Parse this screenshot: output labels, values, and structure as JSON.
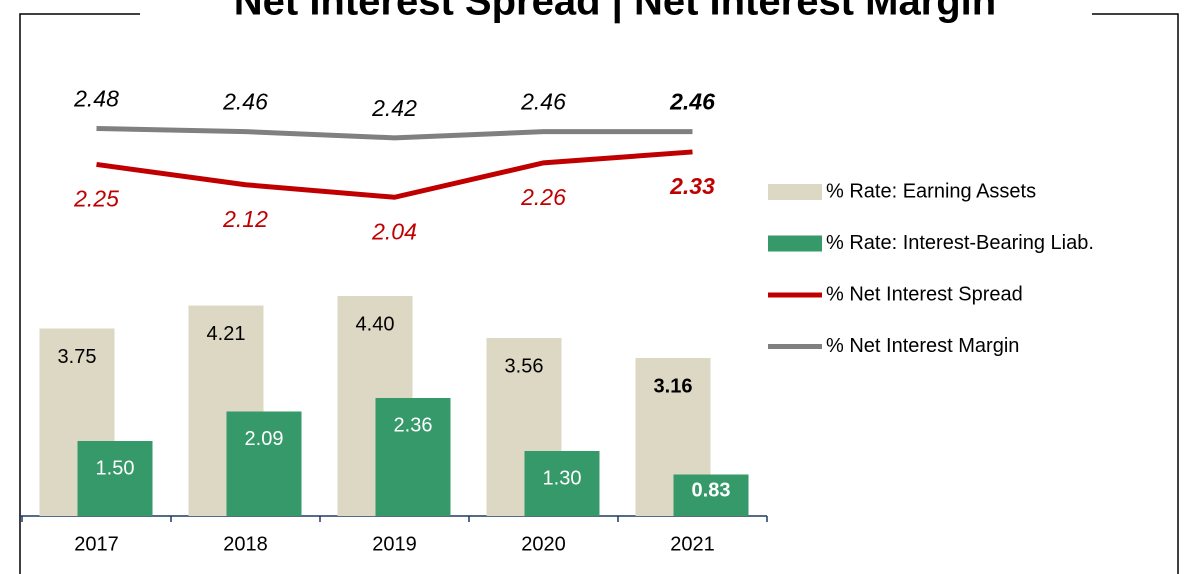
{
  "chart_data": {
    "type": "bar",
    "title": "Net Interest Spread | Net Interest Margin",
    "categories": [
      "2017",
      "2018",
      "2019",
      "2020",
      "2021"
    ],
    "ylim": [
      0,
      10
    ],
    "y2lim": [
      0,
      3.2
    ],
    "series": [
      {
        "name": "% Rate: Earning Assets",
        "type": "bar",
        "color": "#ddd8c4",
        "values": [
          3.75,
          4.21,
          4.4,
          3.56,
          3.16
        ],
        "value_labels": [
          "3.75",
          "4.21",
          "4.40",
          "3.56",
          "3.16"
        ]
      },
      {
        "name": "% Rate: Interest-Bearing Liab.",
        "type": "bar",
        "color": "#36996a",
        "values": [
          1.5,
          2.09,
          2.36,
          1.3,
          0.83
        ],
        "value_labels": [
          "1.50",
          "2.09",
          "2.36",
          "1.30",
          "0.83"
        ]
      },
      {
        "name": "% Net Interest Spread",
        "type": "line",
        "axis": "y2",
        "color": "#c00000",
        "values": [
          2.25,
          2.12,
          2.04,
          2.26,
          2.33
        ]
      },
      {
        "name": "% Net Interest Margin",
        "type": "line",
        "axis": "y2",
        "color": "#808080",
        "values": [
          2.48,
          2.46,
          2.42,
          2.46,
          2.46
        ]
      }
    ]
  }
}
